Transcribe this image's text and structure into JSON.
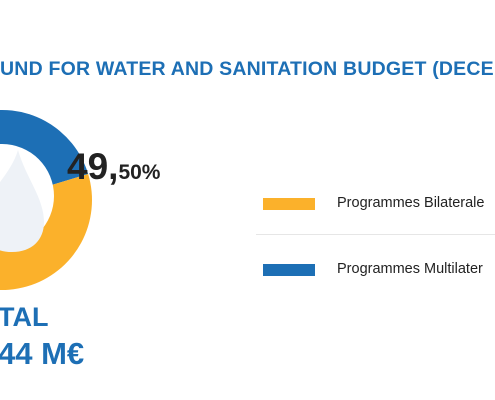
{
  "title": "UND FOR WATER AND SANITATION BUDGET (DECE",
  "chart_data": {
    "type": "pie",
    "slices": [
      {
        "name": "Programmes Bilaterale",
        "value": 50.5,
        "color": "#fbb12b"
      },
      {
        "name": "Programmes Multilater",
        "value": 49.5,
        "color": "#1d6fb5"
      }
    ],
    "data_labels": {
      "multilateral_whole": "49,",
      "multilateral_fraction": "50%"
    },
    "center_icon": "water-drop-icon"
  },
  "total": {
    "label": "TAL",
    "amount": "44 M€"
  },
  "legend": [
    {
      "label": "Programmes Bilaterale",
      "color": "#fbb12b"
    },
    {
      "label": "Programmes Multilater",
      "color": "#1d6fb5"
    }
  ]
}
